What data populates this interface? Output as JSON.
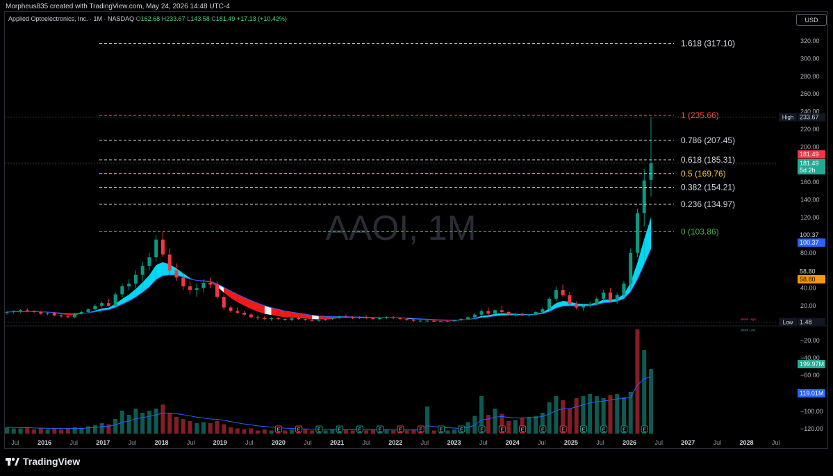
{
  "header": {
    "credit": "Morpheus835 created with TradingView.com, May 24, 2026 14:48 UTC-4"
  },
  "legend": {
    "symbol": "Applied Optoelectronics, Inc. · 1M · NASDAQ",
    "o_label": "O",
    "o": "162.68",
    "h_label": "H",
    "h": "233.67",
    "l_label": "L",
    "l": "143.58",
    "c_label": "C",
    "c": "181.49",
    "chg": "+17.13 (+10.42%)"
  },
  "currency_button": "USD",
  "watermark": "AAOI, 1M",
  "brand": "TradingView",
  "colors": {
    "up": "#089981",
    "down": "#f23645",
    "ribbon": "#00e5ff",
    "fib_top": "#ff4d4d",
    "fib_mid": "#f5c542",
    "fib_zero": "#4caf50",
    "fib_other": "#d1d4dc",
    "ma": "#2962ff"
  },
  "chart_data": {
    "type": "candlestick",
    "symbol": "AAOI",
    "interval": "1M",
    "ylim": [
      -130,
      335
    ],
    "price_ticks": [
      320,
      300,
      280,
      260,
      240,
      220,
      200,
      180,
      160,
      140,
      120,
      100,
      80,
      60,
      40,
      20
    ],
    "volume_ticks": [
      -20,
      -40,
      -60,
      -100,
      -120
    ],
    "x_labels": [
      "Jul",
      "2016",
      "Jul",
      "2017",
      "Jul",
      "2018",
      "Jul",
      "2019",
      "Jul",
      "2020",
      "Jul",
      "2021",
      "Jul",
      "2022",
      "Jul",
      "2023",
      "Jul",
      "2024",
      "Jul",
      "2025",
      "Jul",
      "2026",
      "Jul",
      "2027",
      "Jul",
      "2028",
      "Jul"
    ],
    "fib_levels": [
      {
        "label": "1.618 (317.10)",
        "price": 317.1,
        "kind": "other"
      },
      {
        "label": "1 (235.66)",
        "price": 235.66,
        "kind": "top"
      },
      {
        "label": "0.786 (207.45)",
        "price": 207.45,
        "kind": "other"
      },
      {
        "label": "0.618 (185.31)",
        "price": 185.31,
        "kind": "other"
      },
      {
        "label": "0.5 (169.76)",
        "price": 169.76,
        "kind": "mid"
      },
      {
        "label": "0.382 (154.21)",
        "price": 154.21,
        "kind": "other"
      },
      {
        "label": "0.236 (134.97)",
        "price": 134.97,
        "kind": "other"
      },
      {
        "label": "0 (103.86)",
        "price": 103.86,
        "kind": "zero"
      }
    ],
    "axis_badges": [
      {
        "text": "High",
        "value": "233.67",
        "price": 233.67,
        "bg": "#131722",
        "fg": "#d1d4dc"
      },
      {
        "text": "",
        "value": "181.49",
        "price": 191.5,
        "bg": "#f23645",
        "fg": "#ffffff"
      },
      {
        "text": "",
        "value": "181.49",
        "price": 181.49,
        "bg": "#22ab94",
        "fg": "#ffffff"
      },
      {
        "text": "",
        "value": "5d 2h",
        "price": 173.5,
        "bg": "#22ab94",
        "fg": "#ffffff"
      },
      {
        "text": "",
        "value": "100.37",
        "price": 100.37,
        "bg": "#000000",
        "fg": "#d1d4dc"
      },
      {
        "text": "",
        "value": "100.37",
        "price": 91.5,
        "bg": "#2962ff",
        "fg": "#ffffff"
      },
      {
        "text": "",
        "value": "58.80",
        "price": 58.8,
        "bg": "#000000",
        "fg": "#d1d4dc"
      },
      {
        "text": "",
        "value": "58.80",
        "price": 50,
        "bg": "#ff9800",
        "fg": "#000000"
      },
      {
        "text": "Low",
        "value": "1.48",
        "price": 1.48,
        "bg": "#131722",
        "fg": "#d1d4dc"
      },
      {
        "text": "",
        "value": "199.97M",
        "price": -47,
        "bg": "#22ab94",
        "fg": "#ffffff"
      },
      {
        "text": "",
        "value": "119.01M",
        "price": -73,
        "bg": "#2962ff",
        "fg": "#ffffff"
      }
    ],
    "small_labels": [
      {
        "text": "Week High",
        "price": 5,
        "color": "#f23645"
      },
      {
        "text": "Week Low",
        "price": -7,
        "color": "#22ab94"
      }
    ],
    "candles": [
      [
        12,
        14,
        10,
        13
      ],
      [
        13,
        15,
        11,
        14
      ],
      [
        14,
        16,
        12,
        15
      ],
      [
        15,
        17,
        13,
        14
      ],
      [
        14,
        15,
        12,
        13
      ],
      [
        13,
        14,
        10,
        11
      ],
      [
        11,
        13,
        9,
        12
      ],
      [
        12,
        13,
        8,
        9
      ],
      [
        9,
        11,
        6,
        8
      ],
      [
        8,
        10,
        6,
        7
      ],
      [
        7,
        12,
        6,
        11
      ],
      [
        11,
        14,
        10,
        13
      ],
      [
        13,
        17,
        12,
        16
      ],
      [
        16,
        22,
        15,
        20
      ],
      [
        20,
        25,
        18,
        23
      ],
      [
        23,
        28,
        19,
        20
      ],
      [
        20,
        35,
        19,
        33
      ],
      [
        33,
        45,
        30,
        42
      ],
      [
        42,
        50,
        38,
        45
      ],
      [
        45,
        60,
        40,
        55
      ],
      [
        55,
        70,
        48,
        65
      ],
      [
        65,
        80,
        60,
        75
      ],
      [
        75,
        100,
        70,
        95
      ],
      [
        95,
        105,
        75,
        78
      ],
      [
        78,
        85,
        55,
        60
      ],
      [
        60,
        68,
        48,
        52
      ],
      [
        52,
        56,
        38,
        42
      ],
      [
        42,
        48,
        32,
        38
      ],
      [
        38,
        45,
        30,
        40
      ],
      [
        40,
        50,
        35,
        46
      ],
      [
        46,
        52,
        40,
        44
      ],
      [
        44,
        48,
        28,
        30
      ],
      [
        30,
        32,
        15,
        18
      ],
      [
        18,
        20,
        12,
        14
      ],
      [
        14,
        18,
        11,
        12
      ],
      [
        12,
        14,
        9,
        10
      ],
      [
        10,
        12,
        6,
        7
      ],
      [
        7,
        9,
        4,
        6
      ],
      [
        6,
        8,
        4,
        5
      ],
      [
        5,
        7,
        3,
        6
      ],
      [
        6,
        7,
        4,
        5
      ],
      [
        5,
        6,
        3,
        4
      ],
      [
        4,
        7,
        3,
        6
      ],
      [
        6,
        8,
        4,
        5
      ],
      [
        5,
        6,
        3,
        4
      ],
      [
        4,
        5,
        2,
        3
      ],
      [
        3,
        5,
        2,
        4
      ],
      [
        4,
        6,
        3,
        5
      ],
      [
        5,
        7,
        4,
        6
      ],
      [
        6,
        9,
        5,
        8
      ],
      [
        8,
        10,
        6,
        7
      ],
      [
        7,
        8,
        5,
        6
      ],
      [
        6,
        8,
        5,
        7
      ],
      [
        7,
        9,
        5,
        6
      ],
      [
        6,
        7,
        4,
        5
      ],
      [
        5,
        7,
        4,
        6
      ],
      [
        6,
        8,
        5,
        7
      ],
      [
        7,
        8,
        5,
        6
      ],
      [
        6,
        7,
        4,
        5
      ],
      [
        5,
        6,
        3,
        4
      ],
      [
        4,
        5,
        2,
        3
      ],
      [
        3,
        4,
        2,
        3
      ],
      [
        3,
        4,
        2,
        3
      ],
      [
        3,
        4,
        1.48,
        2
      ],
      [
        2,
        3,
        1.5,
        2.5
      ],
      [
        2.5,
        3,
        2,
        2.5
      ],
      [
        2.5,
        4,
        2,
        3.5
      ],
      [
        3.5,
        6,
        3,
        5
      ],
      [
        5,
        8,
        4,
        7
      ],
      [
        7,
        12,
        6,
        10
      ],
      [
        10,
        16,
        8,
        14
      ],
      [
        14,
        18,
        9,
        11
      ],
      [
        11,
        16,
        10,
        15
      ],
      [
        15,
        20,
        12,
        13
      ],
      [
        13,
        14,
        9,
        10
      ],
      [
        10,
        12,
        8,
        11
      ],
      [
        11,
        12,
        8,
        9
      ],
      [
        9,
        11,
        7,
        10
      ],
      [
        10,
        14,
        9,
        13
      ],
      [
        13,
        18,
        12,
        16
      ],
      [
        16,
        30,
        15,
        28
      ],
      [
        28,
        42,
        25,
        38
      ],
      [
        38,
        44,
        30,
        32
      ],
      [
        32,
        36,
        20,
        22
      ],
      [
        22,
        25,
        16,
        18
      ],
      [
        18,
        22,
        14,
        20
      ],
      [
        20,
        25,
        18,
        22
      ],
      [
        22,
        30,
        20,
        28
      ],
      [
        28,
        38,
        25,
        35
      ],
      [
        35,
        40,
        24,
        26
      ],
      [
        26,
        35,
        22,
        32
      ],
      [
        32,
        48,
        30,
        45
      ],
      [
        45,
        85,
        40,
        80
      ],
      [
        80,
        130,
        75,
        125
      ],
      [
        125,
        175,
        110,
        162
      ],
      [
        162.68,
        233.67,
        143.58,
        181.49
      ]
    ],
    "volume_percent": [
      6,
      5,
      5,
      6,
      4,
      5,
      4,
      5,
      4,
      5,
      6,
      5,
      7,
      8,
      10,
      9,
      14,
      22,
      18,
      24,
      20,
      22,
      24,
      28,
      20,
      16,
      14,
      12,
      10,
      11,
      10,
      12,
      9,
      6,
      5,
      4,
      5,
      3,
      4,
      3,
      4,
      3,
      4,
      3,
      4,
      3,
      4,
      3,
      4,
      3,
      4,
      3,
      4,
      3,
      4,
      3,
      4,
      3,
      4,
      3,
      4,
      3,
      26,
      3,
      4,
      3,
      4,
      3,
      11,
      17,
      36,
      18,
      24,
      19,
      12,
      13,
      15,
      16,
      17,
      20,
      30,
      36,
      32,
      24,
      34,
      36,
      38,
      36,
      34,
      37,
      38,
      35,
      40,
      100,
      80,
      62
    ],
    "volume_is_up": [
      1,
      1,
      1,
      0,
      0,
      0,
      1,
      0,
      0,
      0,
      1,
      1,
      1,
      1,
      1,
      0,
      1,
      1,
      1,
      1,
      1,
      1,
      1,
      0,
      0,
      0,
      0,
      0,
      1,
      1,
      0,
      0,
      0,
      0,
      0,
      0,
      0,
      0,
      0,
      1,
      0,
      0,
      1,
      0,
      0,
      0,
      1,
      1,
      1,
      1,
      0,
      0,
      1,
      0,
      0,
      1,
      1,
      0,
      0,
      0,
      0,
      0,
      1,
      0,
      1,
      1,
      1,
      1,
      1,
      1,
      1,
      0,
      1,
      0,
      0,
      1,
      0,
      1,
      1,
      1,
      1,
      1,
      0,
      0,
      0,
      1,
      1,
      1,
      1,
      0,
      1,
      1,
      1,
      0,
      1,
      1
    ],
    "earnings_markers": "E"
  }
}
